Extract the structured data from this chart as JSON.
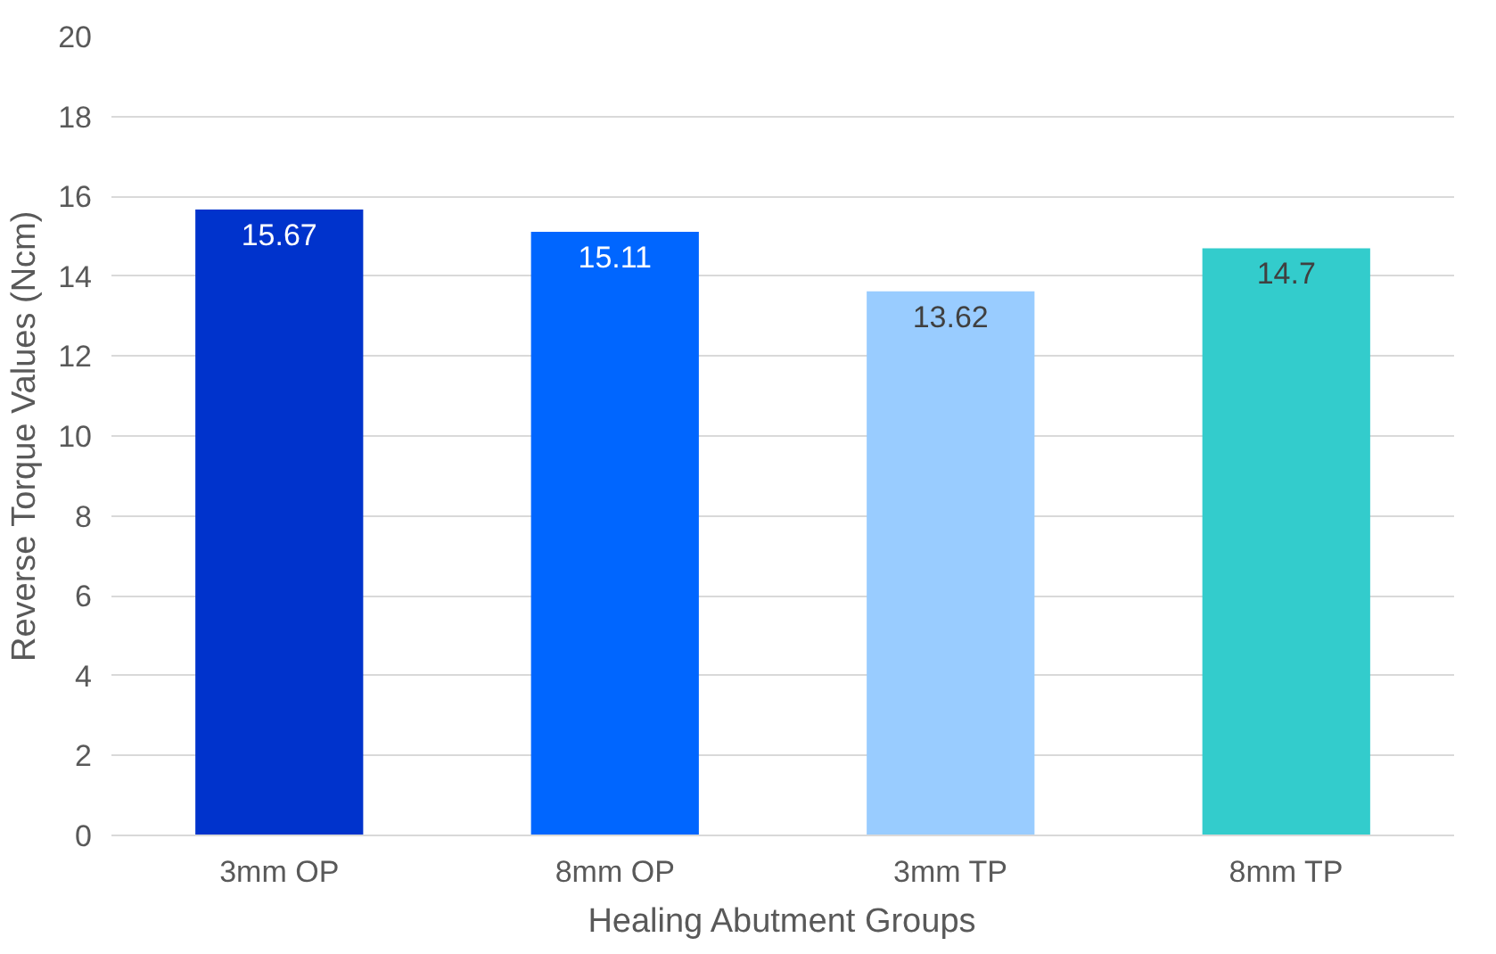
{
  "chart_data": {
    "type": "bar",
    "xlabel": "Healing Abutment Groups",
    "ylabel": "Reverse Torque Values (Ncm)",
    "categories": [
      "3mm OP",
      "8mm OP",
      "3mm TP",
      "8mm TP"
    ],
    "values": [
      15.67,
      15.11,
      13.62,
      14.7
    ],
    "colors": [
      "#0033cc",
      "#0066ff",
      "#99ccff",
      "#33cccc"
    ],
    "ylim": [
      0,
      20
    ],
    "yticks": [
      0,
      2,
      4,
      6,
      8,
      10,
      12,
      14,
      16,
      18,
      20
    ],
    "grid": "y",
    "data_labels": true
  }
}
